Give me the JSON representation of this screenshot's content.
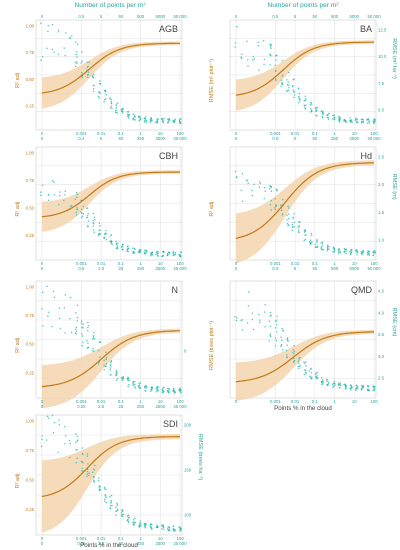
{
  "figure": {
    "top_axis_title": "Number of points per m²",
    "bottom_axis_title": "Points % in the cloud",
    "colors": {
      "r2": "#c17a18",
      "r2_band": "#f3d5ad",
      "rmse": "#2bbcb0",
      "axis_right": "#2aa39a"
    }
  },
  "chart_data": [
    {
      "type": "scatter",
      "panel": "AGB",
      "ylabel_left": "R² adj",
      "ylabel_right": "",
      "y_left_ticks": [
        "1.00",
        "0.75",
        "0.50",
        "0.25"
      ],
      "y_left_lim": [
        0.1,
        1.05
      ],
      "y_right_ticks": [],
      "y_right_lim": [
        0,
        1
      ],
      "x_bottom_ticks": [
        "0",
        "0.001",
        "0.01",
        "0.1",
        "1",
        "10",
        "100"
      ],
      "x_bottom_secondary_ticks": [
        "0",
        "0.4",
        "5",
        "50",
        "250",
        "2500",
        "25 000"
      ],
      "x_top_ticks": [
        "0",
        "0.5",
        "5",
        "50",
        "500",
        "5000",
        "50 000"
      ],
      "show_top_axis": true,
      "show_bottom_title": false,
      "r2_curve": {
        "start": 0.4,
        "plateau": 0.85,
        "midpoint": -2.6,
        "slope": 1.3
      },
      "r2_band": {
        "width_start": 0.14,
        "width_end": 0.015
      },
      "rmse_points": {
        "start": 0.83,
        "end": 0.08,
        "midpoint": -2.4,
        "slope": 1.4,
        "spread": 0.09
      }
    },
    {
      "type": "scatter",
      "panel": "BA",
      "ylabel_left": "RMSE (m² plot⁻¹)",
      "ylabel_right": "RMSE (m² ha⁻¹)",
      "y_left_ticks": [],
      "y_left_lim": [
        0.1,
        1.05
      ],
      "y_right_ticks": [
        "12.5",
        "10.0",
        "7.5",
        "5.0"
      ],
      "y_right_lim": [
        2.5,
        14.0
      ],
      "x_bottom_ticks": [
        "0",
        "0.001",
        "0.01",
        "0.1",
        "1",
        "10",
        "100"
      ],
      "x_bottom_secondary_ticks": [
        "0",
        "0.5",
        "5",
        "50",
        "250",
        "2500",
        "25 000"
      ],
      "x_top_ticks": [
        "0",
        "0.5",
        "5",
        "50",
        "500",
        "5000",
        "50 000"
      ],
      "show_top_axis": true,
      "show_bottom_title": false,
      "r2_curve": {
        "start": 0.38,
        "plateau": 0.86,
        "midpoint": -2.6,
        "slope": 1.3
      },
      "r2_band": {
        "width_start": 0.14,
        "width_end": 0.015
      },
      "rmse_points": {
        "start": 0.78,
        "end": 0.08,
        "midpoint": -2.3,
        "slope": 1.4,
        "spread": 0.09
      }
    },
    {
      "type": "scatter",
      "panel": "CBH",
      "ylabel_left": "R² adj",
      "ylabel_right": "",
      "y_left_ticks": [
        "1.00",
        "0.75",
        "0.50",
        "0.25"
      ],
      "y_left_lim": [
        0.1,
        1.05
      ],
      "y_right_ticks": [],
      "y_right_lim": [
        0,
        1
      ],
      "x_bottom_ticks": [
        "0",
        "0.001",
        "0.01",
        "0.1",
        "1",
        "10",
        "100"
      ],
      "x_bottom_secondary_ticks": [
        "0",
        "0.5",
        "2.5",
        "25",
        "250",
        "2500",
        "25 000"
      ],
      "x_top_ticks": [],
      "show_top_axis": false,
      "show_bottom_title": false,
      "r2_curve": {
        "start": 0.45,
        "plateau": 0.84,
        "midpoint": -2.6,
        "slope": 1.4
      },
      "r2_band": {
        "width_start": 0.13,
        "width_end": 0.015
      },
      "rmse_points": {
        "start": 0.62,
        "end": 0.05,
        "midpoint": -2.4,
        "slope": 1.4,
        "spread": 0.07
      }
    },
    {
      "type": "scatter",
      "panel": "Hd",
      "ylabel_left": "R² adj",
      "ylabel_right": "RMSE (m)",
      "y_left_ticks": [],
      "y_left_lim": [
        0.1,
        1.05
      ],
      "y_right_ticks": [
        "2.5",
        "2.0",
        "1.5",
        "1.0"
      ],
      "y_right_lim": [
        0.6,
        2.75
      ],
      "x_bottom_ticks": [
        "0",
        "0.001",
        "0.01",
        "0.1",
        "1",
        "10",
        "100"
      ],
      "x_bottom_secondary_ticks": [
        "0",
        "0.5",
        "5",
        "50",
        "500",
        "5000",
        "50 000"
      ],
      "x_top_ticks": [],
      "show_top_axis": false,
      "show_bottom_title": false,
      "r2_curve": {
        "start": 0.25,
        "plateau": 0.92,
        "midpoint": -2.5,
        "slope": 1.2
      },
      "r2_band": {
        "width_start": 0.22,
        "width_end": 0.02
      },
      "rmse_points": {
        "start": 0.7,
        "end": 0.06,
        "midpoint": -2.3,
        "slope": 1.3,
        "spread": 0.08
      }
    },
    {
      "type": "scatter",
      "panel": "N",
      "ylabel_left": "R² adj",
      "ylabel_right": "",
      "y_left_ticks": [
        "1.00",
        "0.75",
        "0.50",
        "0.25"
      ],
      "y_left_lim": [
        0.1,
        1.05
      ],
      "y_right_ticks": [
        "0"
      ],
      "y_right_lim": [
        0,
        1
      ],
      "x_bottom_ticks": [
        "0",
        "0.001",
        "0.01",
        "0.1",
        "1",
        "10",
        "100"
      ],
      "x_bottom_secondary_ticks": [
        "0",
        "0.25",
        "2.5",
        "25",
        "250",
        "2500",
        "25 000"
      ],
      "x_top_ticks": [],
      "show_top_axis": false,
      "show_bottom_title": false,
      "r2_curve": {
        "start": 0.18,
        "plateau": 0.65,
        "midpoint": -2.0,
        "slope": 1.2
      },
      "r2_band": {
        "width_start": 0.18,
        "width_end": 0.015
      },
      "rmse_points": {
        "start": 0.82,
        "end": 0.06,
        "midpoint": -2.3,
        "slope": 1.3,
        "spread": 0.1
      }
    },
    {
      "type": "scatter",
      "panel": "QMD",
      "ylabel_left": "RMSE (trees plot⁻¹)",
      "ylabel_right": "RMSE (cm)",
      "y_left_ticks": [],
      "y_left_lim": [
        0.1,
        1.05
      ],
      "y_right_ticks": [
        "4.5",
        "4.0",
        "3.5",
        "3.0",
        "2.5"
      ],
      "y_right_lim": [
        2.2,
        4.8
      ],
      "x_bottom_ticks": [
        "0",
        "0.001",
        "0.01",
        "0.1",
        "1",
        "10",
        "100"
      ],
      "x_bottom_secondary_ticks": [],
      "x_top_ticks": [],
      "show_top_axis": false,
      "show_bottom_title": true,
      "r2_curve": {
        "start": 0.22,
        "plateau": 0.64,
        "midpoint": -2.1,
        "slope": 1.2
      },
      "r2_band": {
        "width_start": 0.16,
        "width_end": 0.015
      },
      "rmse_points": {
        "start": 0.78,
        "end": 0.08,
        "midpoint": -2.3,
        "slope": 1.3,
        "spread": 0.09
      }
    },
    {
      "type": "scatter",
      "panel": "SDI",
      "ylabel_left": "R² adj",
      "ylabel_right": "RMSE (trees ha⁻¹)",
      "y_left_ticks": [
        "1.00",
        "0.75",
        "0.50",
        "0.25"
      ],
      "y_left_lim": [
        0.1,
        1.05
      ],
      "y_right_ticks": [
        "200",
        "150",
        "100"
      ],
      "y_right_lim": [
        80,
        240
      ],
      "x_bottom_ticks": [
        "0",
        "0.001",
        "0.01",
        "0.1",
        "1",
        "10",
        "100"
      ],
      "x_bottom_secondary_ticks": [
        "0",
        "0.25",
        "2.5",
        "25",
        "250",
        "2500",
        "25 000"
      ],
      "x_top_ticks": [],
      "show_top_axis": false,
      "show_bottom_title": true,
      "r2_curve": {
        "start": 0.38,
        "plateau": 0.88,
        "midpoint": -2.7,
        "slope": 1.3
      },
      "r2_band": {
        "width_start": 0.3,
        "width_end": 0.02
      },
      "rmse_points": {
        "start": 0.9,
        "end": 0.05,
        "midpoint": -2.3,
        "slope": 1.3,
        "spread": 0.08
      }
    }
  ]
}
